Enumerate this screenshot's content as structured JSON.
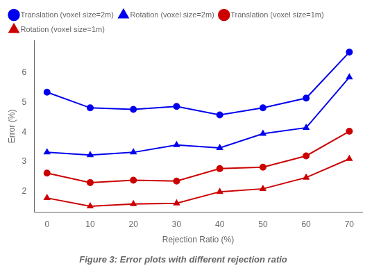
{
  "chart_data": {
    "type": "line",
    "title": "Figure 3: Error plots with different rejection ratio",
    "xlabel": "Rejection Ratio (%)",
    "ylabel": "Error (%)",
    "x": [
      0,
      10,
      20,
      30,
      40,
      50,
      60,
      70
    ],
    "series": [
      {
        "name": "Translation (voxel size=2m)",
        "color": "#0000ee",
        "marker": "circle",
        "values": [
          5.35,
          4.82,
          4.77,
          4.87,
          4.58,
          4.82,
          5.15,
          6.7
        ]
      },
      {
        "name": "Rotation (voxel size=2m)",
        "color": "#0000ee",
        "marker": "triangle",
        "values": [
          3.32,
          3.23,
          3.32,
          3.57,
          3.47,
          3.95,
          4.15,
          5.85
        ]
      },
      {
        "name": "Translation (voxel size=1m)",
        "color": "#cc0000",
        "marker": "circle",
        "values": [
          2.62,
          2.3,
          2.38,
          2.35,
          2.77,
          2.82,
          3.2,
          4.03
        ]
      },
      {
        "name": "Rotation (voxel size=1m)",
        "color": "#cc0000",
        "marker": "triangle",
        "values": [
          1.78,
          1.5,
          1.58,
          1.6,
          1.99,
          2.09,
          2.47,
          3.1
        ]
      }
    ],
    "xlim": [
      -3,
      73
    ],
    "xticks": [
      0,
      10,
      20,
      30,
      40,
      50,
      60,
      70
    ],
    "ylim": [
      1.3,
      7.1
    ],
    "yticks": [
      2,
      3,
      4,
      5,
      6
    ],
    "grid": false,
    "legend": "upper left"
  }
}
